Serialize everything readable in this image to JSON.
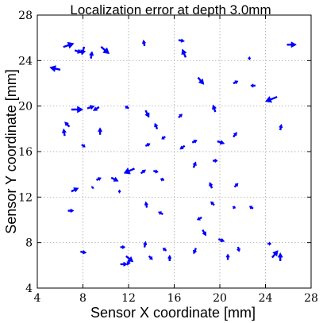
{
  "chart_data": {
    "type": "quiver",
    "title": "Localization error at depth 3.0mm",
    "xlabel": "Sensor X coordinate [mm]",
    "ylabel": "Sensor Y coordinate [mm]",
    "xlim": [
      4,
      28
    ],
    "ylim": [
      4,
      28
    ],
    "xticks": [
      4,
      8,
      12,
      16,
      20,
      24,
      28
    ],
    "yticks": [
      4,
      8,
      12,
      16,
      20,
      24,
      28
    ],
    "grid": true,
    "arrow_color": "#0000ff",
    "vectors": [
      {
        "x": 6.3,
        "y": 25.2,
        "u": 0.9,
        "v": 0.3
      },
      {
        "x": 7.3,
        "y": 24.9,
        "u": 0.6,
        "v": -0.2
      },
      {
        "x": 8.1,
        "y": 25.2,
        "u": -0.2,
        "v": -0.7
      },
      {
        "x": 9.6,
        "y": 25.2,
        "u": 0.7,
        "v": -0.6
      },
      {
        "x": 6.0,
        "y": 23.2,
        "u": -0.9,
        "v": 0.2
      },
      {
        "x": 8.7,
        "y": 24.2,
        "u": 0.1,
        "v": 0.6
      },
      {
        "x": 13.4,
        "y": 25.3,
        "u": -0.1,
        "v": 0.5
      },
      {
        "x": 16.4,
        "y": 25.8,
        "u": 0.5,
        "v": -0.1
      },
      {
        "x": 17.0,
        "y": 24.3,
        "u": -0.3,
        "v": 0.7
      },
      {
        "x": 18.1,
        "y": 22.5,
        "u": 0.5,
        "v": -0.6
      },
      {
        "x": 21.2,
        "y": 22.0,
        "u": 0.4,
        "v": 0.2
      },
      {
        "x": 22.5,
        "y": 24.2,
        "u": 0.2,
        "v": 0.0
      },
      {
        "x": 25.9,
        "y": 25.4,
        "u": 0.8,
        "v": 0.0
      },
      {
        "x": 25.0,
        "y": 20.8,
        "u": -1.0,
        "v": -0.4
      },
      {
        "x": 23.1,
        "y": 21.8,
        "u": -0.4,
        "v": 0.0
      },
      {
        "x": 7.0,
        "y": 19.7,
        "u": 1.0,
        "v": 0.0
      },
      {
        "x": 8.4,
        "y": 19.8,
        "u": 0.6,
        "v": 0.2
      },
      {
        "x": 9.4,
        "y": 19.9,
        "u": -0.5,
        "v": -0.3
      },
      {
        "x": 6.8,
        "y": 18.2,
        "u": -0.4,
        "v": 0.4
      },
      {
        "x": 6.4,
        "y": 17.4,
        "u": -0.1,
        "v": 0.6
      },
      {
        "x": 7.9,
        "y": 16.6,
        "u": 0.3,
        "v": -0.2
      },
      {
        "x": 9.5,
        "y": 17.5,
        "u": 0.0,
        "v": 0.6
      },
      {
        "x": 12.0,
        "y": 19.8,
        "u": -0.3,
        "v": 0.2
      },
      {
        "x": 13.5,
        "y": 19.6,
        "u": 0.3,
        "v": -0.6
      },
      {
        "x": 14.5,
        "y": 18.0,
        "u": -0.2,
        "v": 0.5
      },
      {
        "x": 13.5,
        "y": 16.5,
        "u": 0.4,
        "v": 0.2
      },
      {
        "x": 15.2,
        "y": 17.3,
        "u": -0.3,
        "v": -0.2
      },
      {
        "x": 16.9,
        "y": 16.5,
        "u": -0.4,
        "v": -0.3
      },
      {
        "x": 17.6,
        "y": 16.8,
        "u": 0.4,
        "v": 0.2
      },
      {
        "x": 16.4,
        "y": 19.0,
        "u": 0.3,
        "v": 0.3
      },
      {
        "x": 19.6,
        "y": 19.5,
        "u": -0.2,
        "v": 0.6
      },
      {
        "x": 19.8,
        "y": 16.9,
        "u": 0.6,
        "v": -0.2
      },
      {
        "x": 21.2,
        "y": 17.3,
        "u": 0.3,
        "v": 0.4
      },
      {
        "x": 25.3,
        "y": 17.9,
        "u": 0.1,
        "v": 0.5
      },
      {
        "x": 12.5,
        "y": 14.5,
        "u": -0.9,
        "v": -0.4
      },
      {
        "x": 13.1,
        "y": 14.1,
        "u": 0.4,
        "v": 0.3
      },
      {
        "x": 10.5,
        "y": 13.7,
        "u": 0.6,
        "v": -0.3
      },
      {
        "x": 9.2,
        "y": 13.5,
        "u": 0.4,
        "v": 0.2
      },
      {
        "x": 14.2,
        "y": 14.3,
        "u": 0.4,
        "v": -0.1
      },
      {
        "x": 15.1,
        "y": 13.5,
        "u": -0.3,
        "v": 0.1
      },
      {
        "x": 17.7,
        "y": 14.6,
        "u": 0.2,
        "v": 0.5
      },
      {
        "x": 19.4,
        "y": 15.2,
        "u": 0.4,
        "v": 0.0
      },
      {
        "x": 19.3,
        "y": 12.8,
        "u": -0.2,
        "v": 0.5
      },
      {
        "x": 21.3,
        "y": 12.9,
        "u": 0.3,
        "v": 0.3
      },
      {
        "x": 7.0,
        "y": 12.5,
        "u": 0.6,
        "v": 0.3
      },
      {
        "x": 6.7,
        "y": 10.8,
        "u": 0.5,
        "v": 0.0
      },
      {
        "x": 8.8,
        "y": 12.8,
        "u": 0.1,
        "v": 0.1
      },
      {
        "x": 11.3,
        "y": 12.5,
        "u": -0.2,
        "v": 0.0
      },
      {
        "x": 13.6,
        "y": 11.1,
        "u": -0.1,
        "v": 0.5
      },
      {
        "x": 15.0,
        "y": 10.5,
        "u": -0.4,
        "v": 0.2
      },
      {
        "x": 18.4,
        "y": 10.2,
        "u": -0.4,
        "v": -0.2
      },
      {
        "x": 19.5,
        "y": 11.3,
        "u": -0.3,
        "v": 0.3
      },
      {
        "x": 22.9,
        "y": 11.0,
        "u": -0.3,
        "v": 0.2
      },
      {
        "x": 21.2,
        "y": 11.0,
        "u": 0.1,
        "v": 0.2
      },
      {
        "x": 18.5,
        "y": 9.1,
        "u": 0.3,
        "v": -0.5
      },
      {
        "x": 7.8,
        "y": 7.2,
        "u": 0.5,
        "v": -0.1
      },
      {
        "x": 11.3,
        "y": 7.6,
        "u": 0.4,
        "v": 0.0
      },
      {
        "x": 11.8,
        "y": 6.8,
        "u": 0.6,
        "v": -0.5
      },
      {
        "x": 12.1,
        "y": 6.5,
        "u": -0.2,
        "v": -0.5
      },
      {
        "x": 11.3,
        "y": 6.1,
        "u": 0.6,
        "v": 0.0
      },
      {
        "x": 13.4,
        "y": 7.6,
        "u": 0.1,
        "v": 0.5
      },
      {
        "x": 13.8,
        "y": 6.8,
        "u": 0.3,
        "v": -0.3
      },
      {
        "x": 15.3,
        "y": 7.3,
        "u": -0.3,
        "v": 0.2
      },
      {
        "x": 15.6,
        "y": 6.4,
        "u": 0.0,
        "v": 0.5
      },
      {
        "x": 17.9,
        "y": 7.5,
        "u": -0.2,
        "v": -0.5
      },
      {
        "x": 19.9,
        "y": 8.3,
        "u": 0.5,
        "v": -0.2
      },
      {
        "x": 20.7,
        "y": 6.5,
        "u": 0.0,
        "v": 0.5
      },
      {
        "x": 24.6,
        "y": 6.7,
        "u": 0.5,
        "v": 0.6
      },
      {
        "x": 25.3,
        "y": 6.4,
        "u": 0.0,
        "v": 0.7
      },
      {
        "x": 24.2,
        "y": 7.9,
        "u": 0.3,
        "v": 0.0
      },
      {
        "x": 21.6,
        "y": 7.6,
        "u": 0.1,
        "v": -0.4
      }
    ]
  }
}
